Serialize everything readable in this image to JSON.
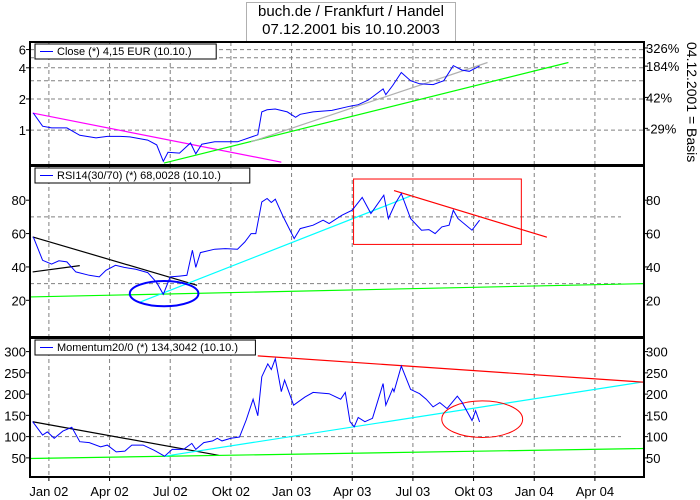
{
  "title": {
    "line1": "buch.de / Frankfurt / Handel",
    "line2": "07.12.2001 bis 10.10.2003"
  },
  "right_axis_label": "04.12.2001 = Basis",
  "xaxis": {
    "xlim": [
      "2001-12-03",
      "2004-06-14"
    ],
    "ticks": [
      {
        "date": "2002-01-01",
        "label": "Jan 02"
      },
      {
        "date": "2002-04-01",
        "label": "Apr 02"
      },
      {
        "date": "2002-07-01",
        "label": "Jul 02"
      },
      {
        "date": "2002-10-01",
        "label": "Okt 02"
      },
      {
        "date": "2003-01-01",
        "label": "Jan 03"
      },
      {
        "date": "2003-04-01",
        "label": "Apr 03"
      },
      {
        "date": "2003-07-01",
        "label": "Jul 03"
      },
      {
        "date": "2003-10-01",
        "label": "Okt 03"
      },
      {
        "date": "2004-01-01",
        "label": "Jan 04"
      },
      {
        "date": "2004-04-01",
        "label": "Apr 04"
      }
    ],
    "grid": true
  },
  "colors": {
    "series": "#0000ff",
    "grid": "#808080",
    "axis": "#000000"
  },
  "chart_data": [
    {
      "type": "line",
      "id": "price",
      "legend": "Close (*) 4,15 EUR (10.10.)",
      "yscale": "log",
      "ylim": [
        0.46,
        7.1
      ],
      "yticks": [
        1,
        2,
        4,
        6
      ],
      "ygrid": [
        1,
        2,
        3,
        4,
        5,
        6
      ],
      "right_ticks": [
        {
          "value": 6.22,
          "label": "326%"
        },
        {
          "value": 4.15,
          "label": "184%"
        },
        {
          "value": 2.07,
          "label": "42%"
        },
        {
          "value": 1.04,
          "label": "-29%"
        }
      ],
      "series": [
        {
          "color": "#0000ff",
          "points": [
            [
              "2001-12-08",
              1.46
            ],
            [
              "2001-12-22",
              1.09
            ],
            [
              "2002-01-05",
              1.05
            ],
            [
              "2002-01-28",
              1.05
            ],
            [
              "2002-02-17",
              0.89
            ],
            [
              "2002-03-11",
              0.84
            ],
            [
              "2002-03-28",
              0.87
            ],
            [
              "2002-04-17",
              0.87
            ],
            [
              "2002-05-01",
              0.86
            ],
            [
              "2002-05-28",
              0.8
            ],
            [
              "2002-06-11",
              0.72
            ],
            [
              "2002-06-21",
              0.5
            ],
            [
              "2002-06-28",
              0.61
            ],
            [
              "2002-07-15",
              0.6
            ],
            [
              "2002-08-01",
              0.75
            ],
            [
              "2002-08-09",
              0.59
            ],
            [
              "2002-08-18",
              0.73
            ],
            [
              "2002-09-07",
              0.77
            ],
            [
              "2002-10-11",
              0.77
            ],
            [
              "2002-11-04",
              0.87
            ],
            [
              "2002-11-11",
              0.9
            ],
            [
              "2002-11-17",
              1.5
            ],
            [
              "2002-11-25",
              1.57
            ],
            [
              "2002-12-07",
              1.6
            ],
            [
              "2002-12-25",
              1.5
            ],
            [
              "2003-01-07",
              1.33
            ],
            [
              "2003-01-14",
              1.42
            ],
            [
              "2003-02-03",
              1.5
            ],
            [
              "2003-03-01",
              1.55
            ],
            [
              "2003-03-28",
              1.7
            ],
            [
              "2003-04-10",
              1.76
            ],
            [
              "2003-04-25",
              1.95
            ],
            [
              "2003-05-17",
              2.5
            ],
            [
              "2003-05-21",
              2.2
            ],
            [
              "2003-06-01",
              2.7
            ],
            [
              "2003-06-14",
              3.6
            ],
            [
              "2003-06-28",
              3.0
            ],
            [
              "2003-07-11",
              2.8
            ],
            [
              "2003-08-01",
              2.75
            ],
            [
              "2003-08-17",
              3.0
            ],
            [
              "2003-09-01",
              4.2
            ],
            [
              "2003-09-14",
              3.8
            ],
            [
              "2003-09-25",
              3.7
            ],
            [
              "2003-10-10",
              4.15
            ]
          ]
        }
      ],
      "trendlines": [
        {
          "color": "#ff00ff",
          "from": [
            "2001-12-07",
            1.46
          ],
          "to": [
            "2002-12-16",
            0.49
          ]
        },
        {
          "color": "#00ff00",
          "from": [
            "2002-06-22",
            0.48
          ],
          "to": [
            "2004-02-22",
            4.5
          ]
        },
        {
          "color": "#b0b0b0",
          "from": [
            "2002-11-01",
            0.77
          ],
          "to": [
            "2003-10-22",
            4.5
          ]
        }
      ]
    },
    {
      "type": "line",
      "id": "rsi",
      "legend": "RSI14(30/70) (*) 68,0028 (10.10.)",
      "yscale": "linear",
      "ylim": [
        -2,
        100.5
      ],
      "yticks": [
        20,
        40,
        60,
        80
      ],
      "ygrid": [
        30,
        70
      ],
      "right_ticks": [
        {
          "value": 20,
          "label": "20"
        },
        {
          "value": 40,
          "label": "40"
        },
        {
          "value": 60,
          "label": "60"
        },
        {
          "value": 80,
          "label": "80"
        }
      ],
      "series": [
        {
          "color": "#0000ff",
          "points": [
            [
              "2001-12-08",
              58
            ],
            [
              "2001-12-22",
              44
            ],
            [
              "2002-01-05",
              41.7
            ],
            [
              "2002-01-16",
              43.7
            ],
            [
              "2002-01-28",
              43
            ],
            [
              "2002-02-11",
              37
            ],
            [
              "2002-03-01",
              35
            ],
            [
              "2002-03-16",
              34
            ],
            [
              "2002-03-26",
              38
            ],
            [
              "2002-04-10",
              41
            ],
            [
              "2002-04-23",
              39.7
            ],
            [
              "2002-05-10",
              38.6
            ],
            [
              "2002-05-28",
              36.6
            ],
            [
              "2002-06-11",
              30.6
            ],
            [
              "2002-06-21",
              23.6
            ],
            [
              "2002-07-01",
              34
            ],
            [
              "2002-07-15",
              34.5
            ],
            [
              "2002-07-26",
              35
            ],
            [
              "2002-08-04",
              50
            ],
            [
              "2002-08-09",
              39.7
            ],
            [
              "2002-08-16",
              48.6
            ],
            [
              "2002-09-07",
              50.6
            ],
            [
              "2002-09-23",
              51
            ],
            [
              "2002-10-11",
              50.6
            ],
            [
              "2002-10-22",
              55
            ],
            [
              "2002-11-01",
              60
            ],
            [
              "2002-11-08",
              60
            ],
            [
              "2002-11-17",
              79
            ],
            [
              "2002-11-25",
              81
            ],
            [
              "2002-12-01",
              78.6
            ],
            [
              "2002-12-07",
              80.6
            ],
            [
              "2002-12-19",
              70
            ],
            [
              "2003-01-05",
              57
            ],
            [
              "2003-01-14",
              63
            ],
            [
              "2003-02-03",
              65
            ],
            [
              "2003-02-18",
              68
            ],
            [
              "2003-02-27",
              66
            ],
            [
              "2003-03-16",
              71
            ],
            [
              "2003-04-01",
              74
            ],
            [
              "2003-04-16",
              81.7
            ],
            [
              "2003-04-29",
              72
            ],
            [
              "2003-05-18",
              83
            ],
            [
              "2003-05-25",
              69
            ],
            [
              "2003-06-05",
              78
            ],
            [
              "2003-06-14",
              84
            ],
            [
              "2003-06-28",
              69
            ],
            [
              "2003-07-14",
              62
            ],
            [
              "2003-07-25",
              62.4
            ],
            [
              "2003-08-04",
              60
            ],
            [
              "2003-08-14",
              64
            ],
            [
              "2003-08-25",
              65
            ],
            [
              "2003-09-01",
              74
            ],
            [
              "2003-09-08",
              69
            ],
            [
              "2003-09-29",
              62
            ],
            [
              "2003-10-10",
              68
            ]
          ]
        }
      ],
      "trendlines": [
        {
          "color": "#000000",
          "from": [
            "2001-12-07",
            58
          ],
          "to": [
            "2002-08-11",
            29
          ]
        },
        {
          "color": "#000000",
          "from": [
            "2001-12-07",
            37
          ],
          "to": [
            "2002-02-17",
            40.8
          ]
        },
        {
          "color": "#00ff00",
          "from": [
            "2001-12-03",
            22
          ],
          "to": [
            "2004-06-14",
            30
          ]
        },
        {
          "color": "#00ffff",
          "from": [
            "2002-05-17",
            19
          ],
          "to": [
            "2003-06-29",
            82.7
          ]
        },
        {
          "color": "#ff0000",
          "from": [
            "2003-06-03",
            85.8
          ],
          "to": [
            "2004-01-20",
            57.8
          ]
        }
      ],
      "rects": [
        {
          "color": "#ff0000",
          "from": [
            "2003-04-03",
            92.7
          ],
          "to": [
            "2003-12-12",
            53.5
          ]
        }
      ],
      "ellipses": [
        {
          "color": "#0000ff",
          "from": [
            "2002-05-01",
            31.6
          ],
          "to": [
            "2002-08-13",
            16.4
          ]
        }
      ]
    },
    {
      "type": "line",
      "id": "momentum",
      "legend": "Momentum20/0 (*) 134,3042 (10.10.)",
      "yscale": "linear",
      "ylim": [
        5,
        332
      ],
      "yticks": [
        50,
        100,
        150,
        200,
        250,
        300
      ],
      "ygrid": [
        100
      ],
      "right_ticks": [
        {
          "value": 50,
          "label": "50"
        },
        {
          "value": 100,
          "label": "100"
        },
        {
          "value": 150,
          "label": "150"
        },
        {
          "value": 200,
          "label": "200"
        },
        {
          "value": 250,
          "label": "250"
        },
        {
          "value": 300,
          "label": "300"
        }
      ],
      "series": [
        {
          "color": "#0000ff",
          "points": [
            [
              "2001-12-07",
              135
            ],
            [
              "2001-12-22",
              103.5
            ],
            [
              "2001-12-29",
              111
            ],
            [
              "2002-01-09",
              96
            ],
            [
              "2002-01-22",
              113
            ],
            [
              "2002-02-05",
              122
            ],
            [
              "2002-02-17",
              88
            ],
            [
              "2002-03-01",
              86
            ],
            [
              "2002-03-18",
              76
            ],
            [
              "2002-03-28",
              80
            ],
            [
              "2002-04-11",
              64
            ],
            [
              "2002-04-24",
              66
            ],
            [
              "2002-05-04",
              80
            ],
            [
              "2002-05-21",
              80
            ],
            [
              "2002-06-07",
              68
            ],
            [
              "2002-06-23",
              54
            ],
            [
              "2002-07-04",
              70
            ],
            [
              "2002-07-21",
              70
            ],
            [
              "2002-08-03",
              84
            ],
            [
              "2002-08-09",
              70
            ],
            [
              "2002-08-21",
              86
            ],
            [
              "2002-09-04",
              90
            ],
            [
              "2002-09-11",
              96
            ],
            [
              "2002-09-18",
              90
            ],
            [
              "2002-10-01",
              96
            ],
            [
              "2002-10-14",
              99
            ],
            [
              "2002-10-24",
              139
            ],
            [
              "2002-11-04",
              188
            ],
            [
              "2002-11-11",
              149
            ],
            [
              "2002-11-17",
              241
            ],
            [
              "2002-11-26",
              271
            ],
            [
              "2002-12-01",
              258
            ],
            [
              "2002-12-07",
              283
            ],
            [
              "2002-12-16",
              206
            ],
            [
              "2002-12-21",
              233
            ],
            [
              "2003-01-04",
              174
            ],
            [
              "2003-01-21",
              193
            ],
            [
              "2003-02-03",
              204
            ],
            [
              "2003-02-27",
              201
            ],
            [
              "2003-03-14",
              188
            ],
            [
              "2003-03-21",
              204
            ],
            [
              "2003-03-28",
              135
            ],
            [
              "2003-04-04",
              123
            ],
            [
              "2003-04-10",
              145
            ],
            [
              "2003-04-20",
              135
            ],
            [
              "2003-05-01",
              143
            ],
            [
              "2003-05-17",
              225
            ],
            [
              "2003-05-21",
              174
            ],
            [
              "2003-06-01",
              213
            ],
            [
              "2003-06-03",
              206
            ],
            [
              "2003-06-14",
              266
            ],
            [
              "2003-06-28",
              211
            ],
            [
              "2003-07-11",
              201
            ],
            [
              "2003-07-21",
              188
            ],
            [
              "2003-08-01",
              170
            ],
            [
              "2003-08-11",
              180
            ],
            [
              "2003-08-22",
              166
            ],
            [
              "2003-09-07",
              195
            ],
            [
              "2003-09-14",
              181
            ],
            [
              "2003-09-29",
              138
            ],
            [
              "2003-10-04",
              161
            ],
            [
              "2003-10-10",
              134.3
            ]
          ]
        }
      ],
      "trendlines": [
        {
          "color": "#000000",
          "from": [
            "2001-12-07",
            135
          ],
          "to": [
            "2002-09-13",
            56
          ]
        },
        {
          "color": "#00ff00",
          "from": [
            "2001-12-03",
            48.6
          ],
          "to": [
            "2004-06-14",
            72
          ]
        },
        {
          "color": "#00ffff",
          "from": [
            "2002-06-23",
            54
          ],
          "to": [
            "2004-06-14",
            229
          ]
        },
        {
          "color": "#ff0000",
          "from": [
            "2002-11-11",
            290
          ],
          "to": [
            "2004-06-14",
            228
          ]
        }
      ],
      "ellipses": [
        {
          "color": "#ff0000",
          "from": [
            "2003-08-14",
            184
          ],
          "to": [
            "2003-12-14",
            98
          ]
        }
      ]
    }
  ]
}
